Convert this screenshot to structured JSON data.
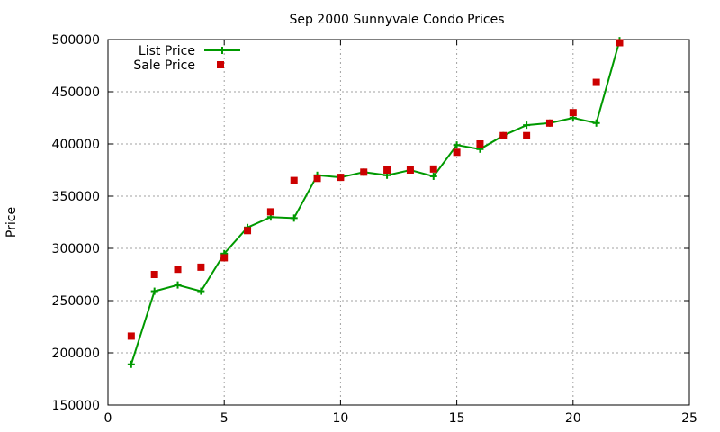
{
  "chart_data": {
    "type": "line",
    "title": "Sep 2000 Sunnyvale Condo Prices",
    "xlabel": "",
    "ylabel": "Price",
    "xlim": [
      0,
      25
    ],
    "ylim": [
      150000,
      500000
    ],
    "xticks": [
      0,
      5,
      10,
      15,
      20,
      25
    ],
    "yticks": [
      150000,
      200000,
      250000,
      300000,
      350000,
      400000,
      450000,
      500000
    ],
    "grid": true,
    "legend_position": "top-left",
    "series": [
      {
        "name": "List Price",
        "style": "line-plus",
        "color": "#009900",
        "x": [
          1,
          2,
          3,
          4,
          5,
          6,
          7,
          8,
          9,
          10,
          11,
          12,
          13,
          14,
          15,
          16,
          17,
          18,
          19,
          20,
          21,
          22
        ],
        "y": [
          189000,
          259000,
          265000,
          259000,
          295000,
          320000,
          330000,
          329000,
          370000,
          368000,
          373000,
          370000,
          375000,
          369000,
          399000,
          395000,
          408000,
          418000,
          420000,
          425000,
          420000,
          499000
        ]
      },
      {
        "name": "Sale Price",
        "style": "square",
        "color": "#cc0000",
        "x": [
          1,
          2,
          3,
          4,
          5,
          6,
          7,
          8,
          9,
          10,
          11,
          12,
          13,
          14,
          15,
          16,
          17,
          18,
          19,
          20,
          21,
          22
        ],
        "y": [
          216000,
          275000,
          280000,
          282000,
          291000,
          317000,
          335000,
          365000,
          367000,
          368000,
          373000,
          375000,
          375000,
          376000,
          392000,
          400000,
          408000,
          408000,
          420000,
          430000,
          459000,
          497000
        ]
      }
    ]
  }
}
